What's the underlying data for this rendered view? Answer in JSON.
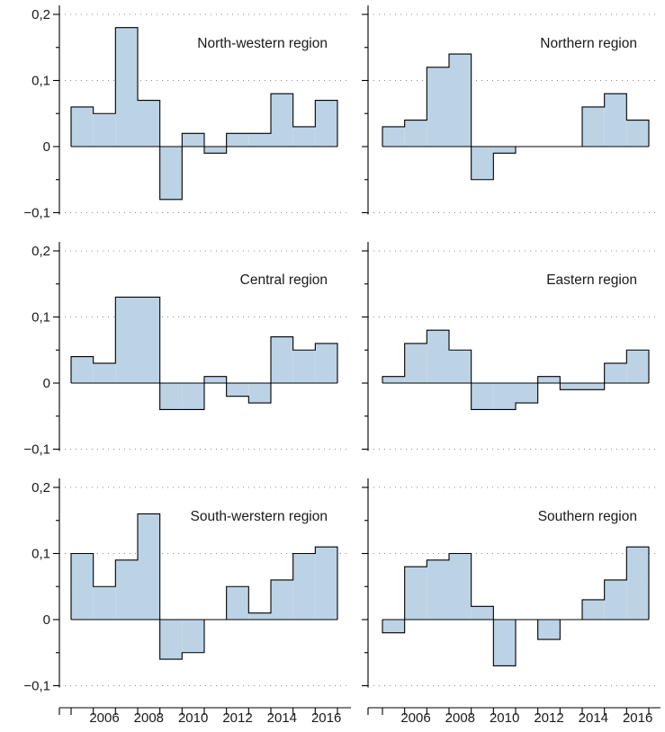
{
  "chart_data": {
    "type": "bar",
    "grid": true,
    "x_ticks": [
      "2006",
      "2008",
      "2010",
      "2012",
      "2014",
      "2016"
    ],
    "y_ticks": [
      "0,2",
      "0,1",
      "0",
      "−0,1"
    ],
    "ylim": [
      -0.1,
      0.2
    ],
    "fill_color": "#bcd3e6",
    "line_color": "#000000",
    "panels": [
      {
        "title": "North-western region",
        "title_align": "right",
        "years": [
          2005,
          2006,
          2007,
          2008,
          2009,
          2010,
          2011,
          2012,
          2013,
          2014,
          2015,
          2016
        ],
        "values": [
          0.06,
          0.05,
          0.18,
          0.07,
          -0.08,
          0.02,
          -0.01,
          0.02,
          0.02,
          0.08,
          0.03,
          0.07
        ]
      },
      {
        "title": "Northern region",
        "title_align": "right",
        "years": [
          2005,
          2006,
          2007,
          2008,
          2009,
          2010,
          2011,
          2012,
          2013,
          2014,
          2015,
          2016
        ],
        "values": [
          0.03,
          0.04,
          0.12,
          0.14,
          -0.05,
          -0.01,
          0,
          0,
          0,
          0.06,
          0.08,
          0.04
        ]
      },
      {
        "title": "Central region",
        "title_align": "right",
        "years": [
          2005,
          2006,
          2007,
          2008,
          2009,
          2010,
          2011,
          2012,
          2013,
          2014,
          2015,
          2016
        ],
        "values": [
          0.04,
          0.03,
          0.13,
          0.13,
          -0.04,
          -0.04,
          0.01,
          -0.02,
          -0.03,
          0.07,
          0.05,
          0.06
        ]
      },
      {
        "title": "Eastern region",
        "title_align": "right",
        "years": [
          2005,
          2006,
          2007,
          2008,
          2009,
          2010,
          2011,
          2012,
          2013,
          2014,
          2015,
          2016
        ],
        "values": [
          0.01,
          0.06,
          0.08,
          0.05,
          -0.04,
          -0.04,
          -0.03,
          0.01,
          -0.01,
          -0.01,
          0.03,
          0.05
        ]
      },
      {
        "title": "South-werstern region",
        "title_align": "right",
        "years": [
          2005,
          2006,
          2007,
          2008,
          2009,
          2010,
          2011,
          2012,
          2013,
          2014,
          2015,
          2016
        ],
        "values": [
          0.1,
          0.05,
          0.09,
          0.16,
          -0.06,
          -0.05,
          0,
          0.05,
          0.01,
          0.06,
          0.1,
          0.11
        ]
      },
      {
        "title": "Southern region",
        "title_align": "right",
        "years": [
          2005,
          2006,
          2007,
          2008,
          2009,
          2010,
          2011,
          2012,
          2013,
          2014,
          2015,
          2016
        ],
        "values": [
          -0.02,
          0.08,
          0.09,
          0.1,
          0.02,
          -0.07,
          0,
          -0.03,
          0,
          0.03,
          0.06,
          0.11
        ]
      }
    ]
  }
}
